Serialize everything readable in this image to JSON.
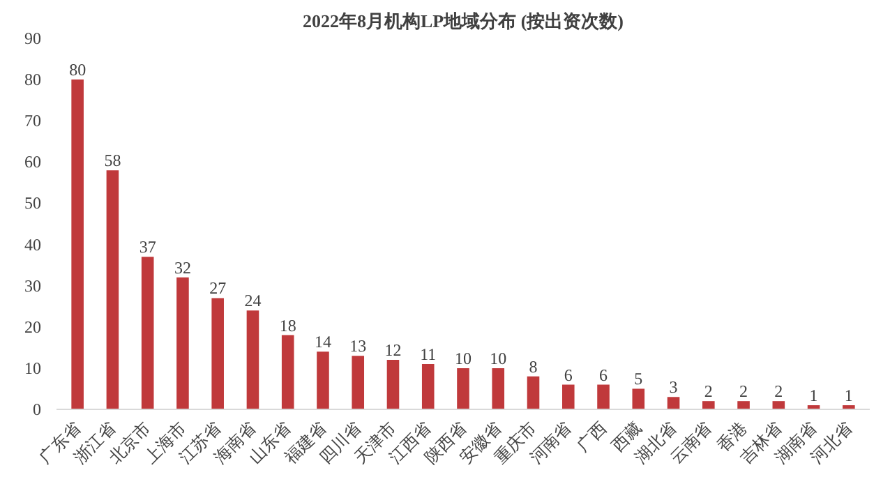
{
  "chart_data": {
    "type": "bar",
    "title": "2022年8月机构LP地域分布 (按出资次数)",
    "categories": [
      "广东省",
      "浙江省",
      "北京市",
      "上海市",
      "江苏省",
      "海南省",
      "山东省",
      "福建省",
      "四川省",
      "天津市",
      "江西省",
      "陕西省",
      "安徽省",
      "重庆市",
      "河南省",
      "广西",
      "西藏",
      "湖北省",
      "云南省",
      "香港",
      "吉林省",
      "湖南省",
      "河北省"
    ],
    "values": [
      80,
      58,
      37,
      32,
      27,
      24,
      18,
      14,
      13,
      12,
      11,
      10,
      10,
      8,
      6,
      6,
      5,
      3,
      2,
      2,
      2,
      1,
      1
    ],
    "color": "#c0393b",
    "ylim": [
      0,
      90
    ],
    "yticks": [
      0,
      10,
      20,
      30,
      40,
      50,
      60,
      70,
      80,
      90
    ],
    "grid": false,
    "data_labels": true
  }
}
